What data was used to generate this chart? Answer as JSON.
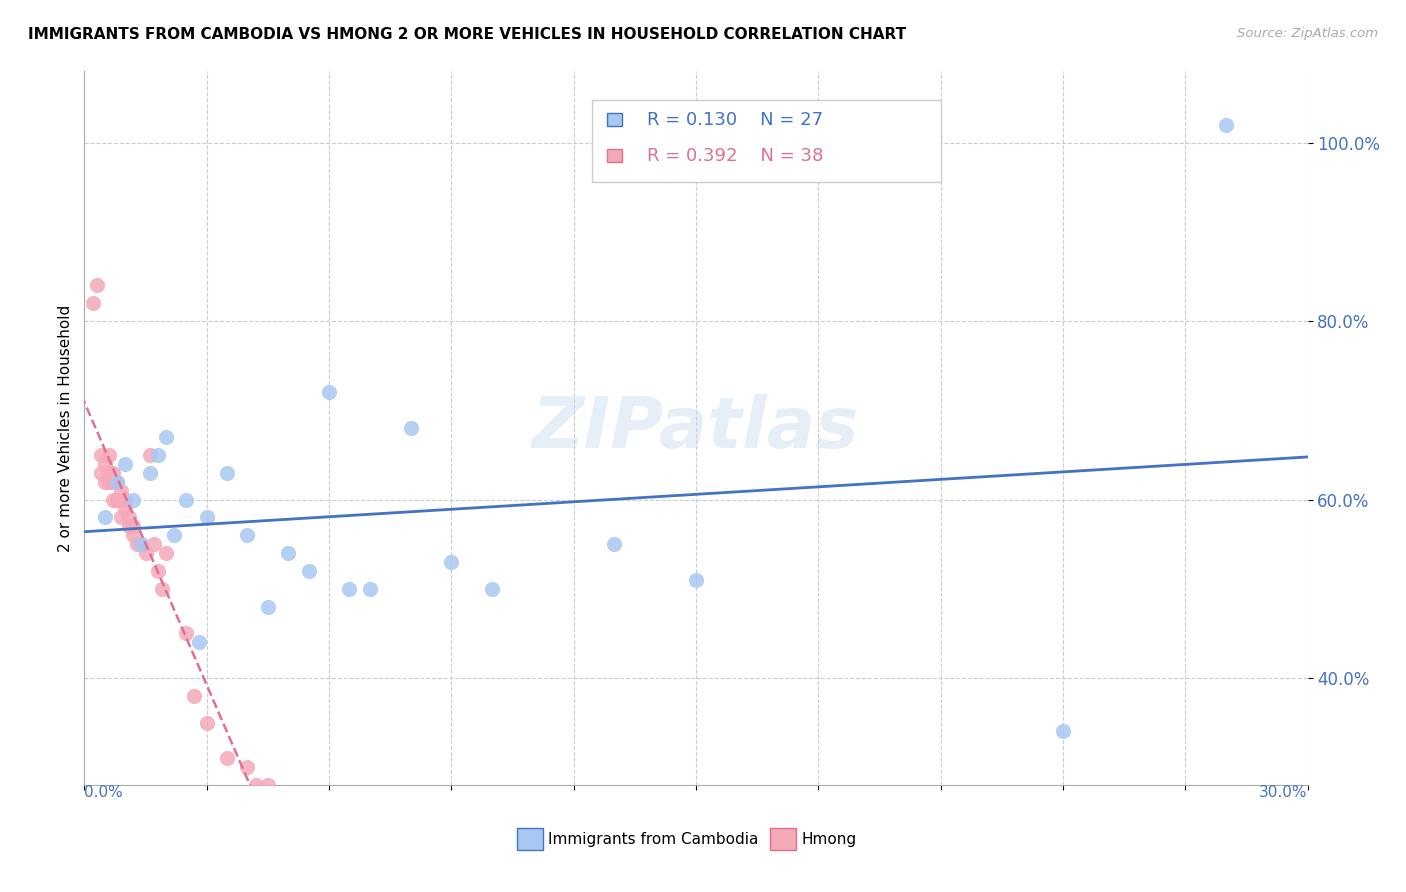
{
  "title": "IMMIGRANTS FROM CAMBODIA VS HMONG 2 OR MORE VEHICLES IN HOUSEHOLD CORRELATION CHART",
  "source": "Source: ZipAtlas.com",
  "ylabel": "2 or more Vehicles in Household",
  "xlim": [
    0.0,
    0.3
  ],
  "ylim": [
    0.28,
    1.08
  ],
  "y_ticks": [
    0.4,
    0.6,
    0.8,
    1.0
  ],
  "y_tick_labels": [
    "40.0%",
    "60.0%",
    "80.0%",
    "100.0%"
  ],
  "legend_r1": "R = 0.130",
  "legend_n1": "N = 27",
  "legend_r2": "R = 0.392",
  "legend_n2": "N = 38",
  "color_cambodia": "#a8c8f0",
  "color_hmong": "#f5a8b8",
  "color_cambodia_line": "#4472c4",
  "color_hmong_line": "#e07090",
  "watermark": "ZIPatlas",
  "cambodia_x": [
    0.005,
    0.008,
    0.01,
    0.012,
    0.014,
    0.016,
    0.018,
    0.02,
    0.022,
    0.025,
    0.028,
    0.03,
    0.035,
    0.04,
    0.045,
    0.05,
    0.055,
    0.06,
    0.065,
    0.07,
    0.08,
    0.09,
    0.1,
    0.13,
    0.15,
    0.24,
    0.28
  ],
  "cambodia_y": [
    0.58,
    0.62,
    0.64,
    0.6,
    0.55,
    0.63,
    0.65,
    0.67,
    0.56,
    0.6,
    0.44,
    0.58,
    0.63,
    0.56,
    0.48,
    0.54,
    0.52,
    0.72,
    0.5,
    0.5,
    0.68,
    0.53,
    0.5,
    0.55,
    0.51,
    0.34,
    1.02
  ],
  "hmong_x": [
    0.002,
    0.003,
    0.004,
    0.004,
    0.005,
    0.005,
    0.006,
    0.006,
    0.006,
    0.007,
    0.007,
    0.007,
    0.008,
    0.008,
    0.008,
    0.009,
    0.009,
    0.01,
    0.01,
    0.011,
    0.011,
    0.012,
    0.012,
    0.013,
    0.014,
    0.015,
    0.016,
    0.017,
    0.018,
    0.019,
    0.02,
    0.025,
    0.027,
    0.03,
    0.035,
    0.04,
    0.042,
    0.045
  ],
  "hmong_y": [
    0.82,
    0.84,
    0.63,
    0.65,
    0.62,
    0.64,
    0.62,
    0.63,
    0.65,
    0.6,
    0.62,
    0.63,
    0.6,
    0.62,
    0.6,
    0.61,
    0.58,
    0.59,
    0.6,
    0.57,
    0.58,
    0.57,
    0.56,
    0.55,
    0.55,
    0.54,
    0.65,
    0.55,
    0.52,
    0.5,
    0.54,
    0.45,
    0.38,
    0.35,
    0.31,
    0.3,
    0.28,
    0.28
  ]
}
